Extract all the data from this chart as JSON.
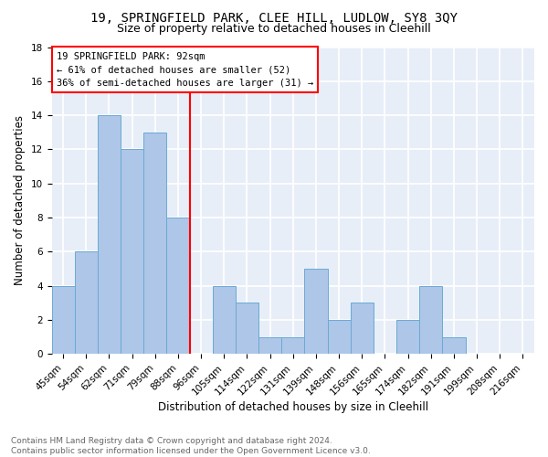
{
  "title1": "19, SPRINGFIELD PARK, CLEE HILL, LUDLOW, SY8 3QY",
  "title2": "Size of property relative to detached houses in Cleehill",
  "xlabel": "Distribution of detached houses by size in Cleehill",
  "ylabel": "Number of detached properties",
  "categories": [
    "45sqm",
    "54sqm",
    "62sqm",
    "71sqm",
    "79sqm",
    "88sqm",
    "96sqm",
    "105sqm",
    "114sqm",
    "122sqm",
    "131sqm",
    "139sqm",
    "148sqm",
    "156sqm",
    "165sqm",
    "174sqm",
    "182sqm",
    "191sqm",
    "199sqm",
    "208sqm",
    "216sqm"
  ],
  "values": [
    4,
    6,
    14,
    12,
    13,
    8,
    0,
    4,
    3,
    1,
    1,
    5,
    2,
    3,
    0,
    2,
    4,
    1,
    0,
    0,
    0
  ],
  "bar_color": "#aec6e8",
  "bar_edge_color": "#6aaad4",
  "vline_color": "red",
  "annotation_title": "19 SPRINGFIELD PARK: 92sqm",
  "annotation_line1": "← 61% of detached houses are smaller (52)",
  "annotation_line2": "36% of semi-detached houses are larger (31) →",
  "ylim": [
    0,
    18
  ],
  "yticks": [
    0,
    2,
    4,
    6,
    8,
    10,
    12,
    14,
    16,
    18
  ],
  "footer1": "Contains HM Land Registry data © Crown copyright and database right 2024.",
  "footer2": "Contains public sector information licensed under the Open Government Licence v3.0.",
  "bg_color": "#e8eef8",
  "grid_color": "#ffffff",
  "title_fontsize": 10,
  "subtitle_fontsize": 9,
  "axis_label_fontsize": 8.5,
  "tick_fontsize": 7.5,
  "annotation_fontsize": 7.5,
  "footer_fontsize": 6.5
}
